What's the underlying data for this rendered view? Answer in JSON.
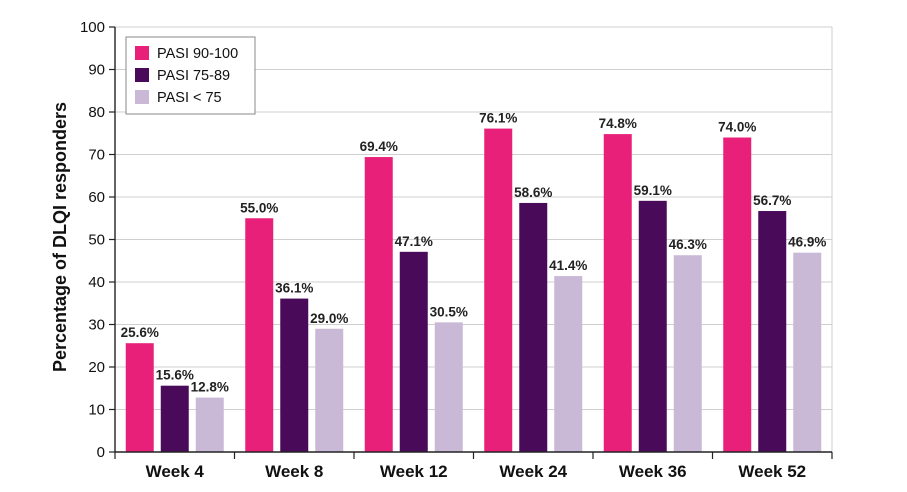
{
  "chart_data": {
    "type": "bar",
    "title": "",
    "xlabel": "",
    "ylabel": "Percentage of DLQI responders",
    "ylim": [
      0,
      100
    ],
    "yticks": [
      0,
      10,
      20,
      30,
      40,
      50,
      60,
      70,
      80,
      90,
      100
    ],
    "grid": true,
    "legend_position": "top-left",
    "categories": [
      "Week 4",
      "Week 8",
      "Week 12",
      "Week 24",
      "Week 36",
      "Week 52"
    ],
    "series": [
      {
        "name": "PASI 90-100",
        "color": "#e8207a",
        "values": [
          25.6,
          55.0,
          69.4,
          76.1,
          74.8,
          74.0
        ],
        "labels": [
          "25.6%",
          "55.0%",
          "69.4%",
          "76.1%",
          "74.8%",
          "74.0%"
        ]
      },
      {
        "name": "PASI 75-89",
        "color": "#4a0a5a",
        "values": [
          15.6,
          36.1,
          47.1,
          58.6,
          59.1,
          56.7
        ],
        "labels": [
          "15.6%",
          "36.1%",
          "47.1%",
          "58.6%",
          "59.1%",
          "56.7%"
        ]
      },
      {
        "name": "PASI < 75",
        "color": "#c9b9d6",
        "values": [
          12.8,
          29.0,
          30.5,
          41.4,
          46.3,
          46.9
        ],
        "labels": [
          "12.8%",
          "29.0%",
          "30.5%",
          "41.4%",
          "46.3%",
          "46.9%"
        ]
      }
    ]
  }
}
